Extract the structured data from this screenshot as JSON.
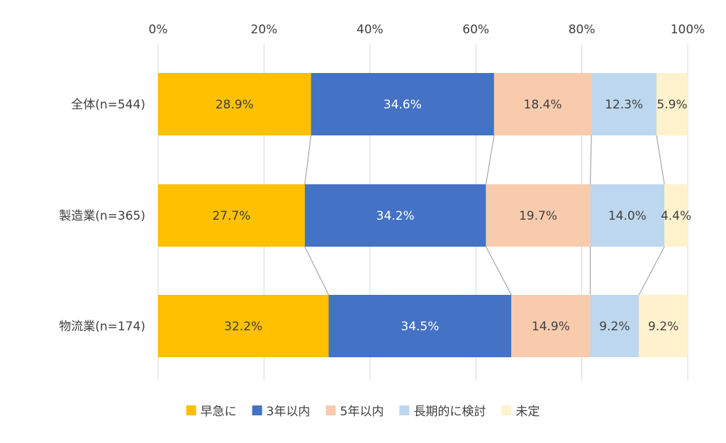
{
  "chart_data": {
    "type": "bar",
    "orientation": "horizontal",
    "stacked": "percent",
    "categories": [
      "全体(n=544)",
      "製造業(n=365)",
      "物流業(n=174)"
    ],
    "series": [
      {
        "name": "早急に",
        "color": "#FFC000",
        "values": [
          28.9,
          27.7,
          32.2
        ],
        "labels": [
          "28.9%",
          "27.7%",
          "32.2%"
        ],
        "label_color": "#404040"
      },
      {
        "name": "3年以内",
        "color": "#4472C4",
        "values": [
          34.6,
          34.2,
          34.5
        ],
        "labels": [
          "34.6%",
          "34.2%",
          "34.5%"
        ],
        "label_color": "#FFFFFF"
      },
      {
        "name": "5年以内",
        "color": "#F8CBAD",
        "values": [
          18.4,
          19.7,
          14.9
        ],
        "labels": [
          "18.4%",
          "19.7%",
          "14.9%"
        ],
        "label_color": "#404040"
      },
      {
        "name": "長期的に検討",
        "color": "#BDD7EE",
        "values": [
          12.3,
          14.0,
          9.2
        ],
        "labels": [
          "12.3%",
          "14.0%",
          "9.2%"
        ],
        "label_color": "#404040"
      },
      {
        "name": "未定",
        "color": "#FFF2CC",
        "values": [
          5.9,
          4.4,
          9.2
        ],
        "labels": [
          "5.9%",
          "4.4%",
          "9.2%"
        ],
        "label_color": "#404040"
      }
    ],
    "xaxis": {
      "ticks": [
        "0%",
        "20%",
        "40%",
        "60%",
        "80%",
        "100%"
      ],
      "range": [
        0,
        100
      ],
      "position": "top"
    },
    "grid": true,
    "series_lines": true,
    "legend": {
      "position": "bottom"
    }
  }
}
